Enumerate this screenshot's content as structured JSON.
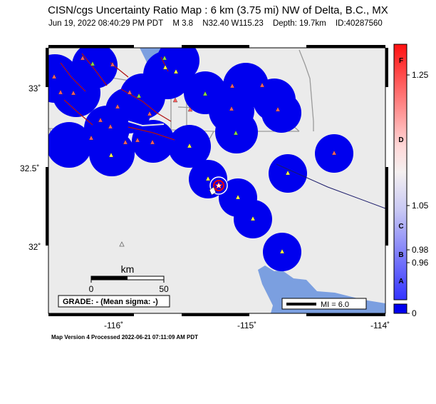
{
  "header": {
    "title": "CISN/cgs Uncertainty Ratio Map : 6 km (3.75 mi) NW of Delta, B.C., MX",
    "datetime": "Jun 19, 2022 08:40:29 PM PDT",
    "magnitude": "M 3.8",
    "location": "N32.40 W115.23",
    "depth": "Depth: 19.7km",
    "event_id": "ID:40287560"
  },
  "axes": {
    "lat_labels": [
      "33˚",
      "32.5˚",
      "32˚"
    ],
    "lon_labels": [
      "-116˚",
      "-115˚",
      "-114˚"
    ]
  },
  "scale_bar": {
    "unit": "km",
    "min_label": "0",
    "max_label": "50"
  },
  "grade_box": {
    "text": "GRADE: - (Mean sigma: -)"
  },
  "mi_legend": {
    "text": "MI = 6.0"
  },
  "colorbar": {
    "grade_letters": [
      "F",
      "D",
      "C",
      "B",
      "A"
    ],
    "value_labels": [
      "1.25",
      "1.05",
      "0.98",
      "0.96",
      "0"
    ]
  },
  "footer": {
    "text": "Map Version 4 Processed 2022-06-21 07:11:09 AM PDT"
  },
  "colors": {
    "uncertainty_disc": "#0000ee",
    "land": "#ebebeb",
    "water": "#7b9fe0",
    "fault": "#b01010",
    "road": "#9a9a9a"
  }
}
